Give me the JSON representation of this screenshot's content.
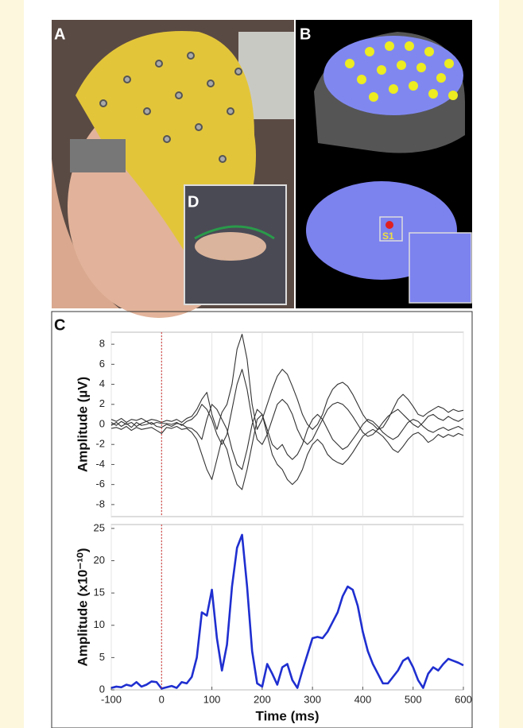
{
  "panels": {
    "a": "A",
    "b": "B",
    "c": "C",
    "d": "D",
    "s1": "S1"
  },
  "chart_data": [
    {
      "type": "line",
      "y_label": "Amplitude (µV)",
      "xlim": [
        -100,
        600
      ],
      "ylim": [
        -9.2,
        9.2
      ],
      "yticks": [
        -8,
        -6,
        -4,
        -2,
        0,
        2,
        4,
        6,
        8
      ],
      "grid": true,
      "vline": 0,
      "vline_color": "#d03030",
      "x": [
        -100,
        -90,
        -80,
        -70,
        -60,
        -50,
        -40,
        -30,
        -20,
        -10,
        0,
        10,
        20,
        30,
        40,
        50,
        60,
        70,
        80,
        90,
        100,
        110,
        120,
        130,
        140,
        150,
        160,
        170,
        180,
        190,
        200,
        210,
        220,
        230,
        240,
        250,
        260,
        270,
        280,
        290,
        300,
        310,
        320,
        330,
        340,
        350,
        360,
        370,
        380,
        390,
        400,
        410,
        420,
        430,
        440,
        450,
        460,
        470,
        480,
        490,
        500,
        510,
        520,
        530,
        540,
        550,
        560,
        570,
        580,
        590,
        600
      ],
      "series": [
        {
          "color": "#333333",
          "values": [
            0.5,
            0.3,
            0.6,
            0.2,
            0.5,
            0.4,
            0.6,
            0.3,
            0.5,
            0.4,
            0.2,
            0.4,
            0.3,
            0.5,
            0.2,
            0.6,
            0.8,
            1.5,
            2.5,
            3.2,
            1.0,
            -0.5,
            1.2,
            2.0,
            4.0,
            7.5,
            9.0,
            6.5,
            2.0,
            -0.5,
            0.5,
            2.0,
            3.5,
            4.8,
            5.5,
            5.0,
            3.8,
            2.5,
            1.0,
            0.0,
            -0.5,
            0.0,
            1.0,
            2.5,
            3.5,
            4.0,
            4.2,
            3.8,
            3.0,
            2.0,
            1.0,
            0.3,
            0.0,
            -0.5,
            -0.3,
            0.5,
            1.5,
            2.5,
            3.0,
            2.5,
            1.8,
            1.0,
            0.8,
            1.2,
            1.5,
            1.8,
            1.6,
            1.2,
            1.5,
            1.3,
            1.4
          ]
        },
        {
          "color": "#333333",
          "values": [
            -0.4,
            -0.3,
            -0.5,
            -0.2,
            -0.6,
            -0.3,
            -0.5,
            -0.4,
            -0.3,
            -0.6,
            -0.9,
            -0.3,
            -0.4,
            -0.2,
            -0.5,
            -0.4,
            -0.8,
            -1.5,
            -3.0,
            -4.5,
            -5.5,
            -3.5,
            -1.5,
            -2.5,
            -4.5,
            -6.0,
            -6.5,
            -4.5,
            -2.0,
            0.5,
            1.0,
            -1.0,
            -3.0,
            -4.0,
            -4.5,
            -5.5,
            -6.0,
            -5.5,
            -4.5,
            -3.0,
            -2.0,
            -1.5,
            -2.0,
            -3.0,
            -3.5,
            -3.8,
            -4.0,
            -3.5,
            -2.8,
            -2.0,
            -1.2,
            -0.8,
            -0.5,
            -0.8,
            -1.2,
            -1.8,
            -2.5,
            -2.8,
            -2.2,
            -1.5,
            -1.0,
            -0.8,
            -1.2,
            -1.8,
            -1.5,
            -1.0,
            -1.3,
            -1.0,
            -1.2,
            -0.9,
            -1.1
          ]
        },
        {
          "color": "#333333",
          "values": [
            0.2,
            -0.1,
            0.3,
            0.0,
            0.2,
            -0.2,
            0.1,
            0.3,
            0.0,
            0.2,
            0.1,
            0.1,
            0.0,
            0.2,
            -0.1,
            0.3,
            0.5,
            1.0,
            2.0,
            1.5,
            0.5,
            -1.0,
            -2.0,
            -1.0,
            1.5,
            4.0,
            5.5,
            3.5,
            0.5,
            -1.5,
            -2.0,
            -1.0,
            0.5,
            2.0,
            2.5,
            2.0,
            1.0,
            -0.5,
            -1.5,
            -2.0,
            -1.5,
            -0.5,
            0.5,
            1.5,
            2.0,
            2.2,
            2.0,
            1.5,
            0.8,
            0.0,
            -0.8,
            -1.2,
            -1.0,
            -0.5,
            0.2,
            0.8,
            1.2,
            1.5,
            1.0,
            0.5,
            0.0,
            -0.3,
            0.2,
            0.8,
            1.0,
            0.6,
            0.4,
            0.8,
            0.5,
            0.3,
            0.6
          ]
        },
        {
          "color": "#333333",
          "values": [
            -0.1,
            0.2,
            -0.2,
            0.1,
            -0.3,
            0.2,
            -0.1,
            0.0,
            0.2,
            -0.2,
            -0.3,
            0.0,
            -0.2,
            0.1,
            0.0,
            -0.3,
            -0.4,
            -0.8,
            -1.5,
            0.5,
            2.0,
            1.5,
            0.5,
            -0.5,
            -2.5,
            -4.0,
            -4.5,
            -2.5,
            0.0,
            1.5,
            1.0,
            -0.5,
            -2.0,
            -2.5,
            -2.0,
            -3.0,
            -3.5,
            -3.0,
            -2.0,
            -0.5,
            0.5,
            1.0,
            0.5,
            -0.5,
            -1.5,
            -2.0,
            -2.5,
            -2.2,
            -1.5,
            -0.8,
            0.0,
            0.5,
            0.3,
            -0.2,
            -0.8,
            -1.2,
            -1.5,
            -1.2,
            -0.5,
            0.2,
            0.5,
            0.3,
            -0.2,
            -0.6,
            -0.8,
            -0.5,
            -0.3,
            -0.6,
            -0.4,
            -0.2,
            -0.5
          ]
        }
      ]
    },
    {
      "type": "line",
      "y_label": "Amplitude (x10⁻¹⁰)",
      "x_label": "Time (ms)",
      "xlim": [
        -100,
        600
      ],
      "ylim": [
        0,
        25.6
      ],
      "xticks": [
        -100,
        0,
        100,
        200,
        300,
        400,
        500,
        600
      ],
      "yticks": [
        0,
        5,
        10,
        15,
        20,
        25
      ],
      "grid": true,
      "vline": 0,
      "vline_color": "#d03030",
      "x": [
        -100,
        -90,
        -80,
        -70,
        -60,
        -50,
        -40,
        -30,
        -20,
        -10,
        0,
        10,
        20,
        30,
        40,
        50,
        60,
        70,
        80,
        90,
        100,
        110,
        120,
        130,
        140,
        150,
        160,
        170,
        180,
        190,
        200,
        210,
        220,
        230,
        240,
        250,
        260,
        270,
        280,
        290,
        300,
        310,
        320,
        330,
        340,
        350,
        360,
        370,
        380,
        390,
        400,
        410,
        420,
        430,
        440,
        450,
        460,
        470,
        480,
        490,
        500,
        510,
        520,
        530,
        540,
        550,
        560,
        570,
        580,
        590,
        600
      ],
      "series": [
        {
          "color": "#1f2fd0",
          "values": [
            0.3,
            0.5,
            0.4,
            0.8,
            0.6,
            1.2,
            0.5,
            0.8,
            1.3,
            1.2,
            0.2,
            0.4,
            0.6,
            0.3,
            1.2,
            1.0,
            2.0,
            5.0,
            12.0,
            11.5,
            15.5,
            8.0,
            3.0,
            7.0,
            16.0,
            22.0,
            24.0,
            16.0,
            6.0,
            1.0,
            0.5,
            4.0,
            2.5,
            0.8,
            3.5,
            4.0,
            1.5,
            0.3,
            3.0,
            5.5,
            8.0,
            8.2,
            8.0,
            9.0,
            10.5,
            12.0,
            14.5,
            16.0,
            15.5,
            13.0,
            9.0,
            6.0,
            4.0,
            2.5,
            1.0,
            1.0,
            2.0,
            3.0,
            4.5,
            5.0,
            3.5,
            1.5,
            0.3,
            2.5,
            3.5,
            3.0,
            4.0,
            4.8,
            4.5,
            4.2,
            3.8
          ]
        }
      ]
    }
  ]
}
